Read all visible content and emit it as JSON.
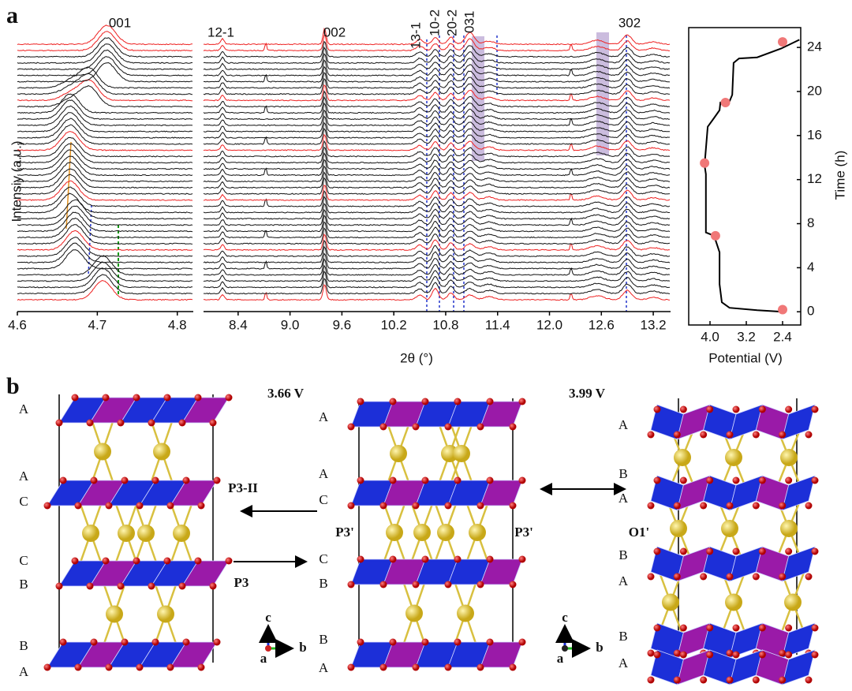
{
  "panel_labels": [
    "a",
    "b"
  ],
  "chart_data": [
    {
      "type": "waterfall",
      "ylabel": "Intensiy (a.u.)",
      "xlim": [
        4.6,
        4.82
      ],
      "xticks": [
        4.6,
        4.7,
        4.8
      ],
      "peak_labels": [
        "001"
      ]
    },
    {
      "type": "waterfall",
      "xlabel": "2θ (°)",
      "xlim": [
        8.0,
        13.4
      ],
      "xticks": [
        8.4,
        {
          "value": 9,
          "label": "9.0"
        },
        9.6,
        10.2,
        10.8,
        11.4,
        {
          "value": 12,
          "label": "12.0"
        },
        12.6,
        13.2
      ],
      "peak_labels": [
        "12-1",
        "002",
        "13-1",
        "10-2",
        "20-2",
        "031",
        "302"
      ]
    },
    {
      "type": "line",
      "xlabel": "Potential (V)",
      "ylabel": "Time (h)",
      "xlim": [
        4.47,
        2.0
      ],
      "ylim": [
        -1.2,
        25.8
      ],
      "xticks": [
        {
          "value": 4,
          "label": "4.0"
        },
        3.2,
        2.4
      ],
      "yticks": [
        0,
        4,
        8,
        12,
        16,
        20,
        24
      ],
      "x": [
        2.4,
        2.96,
        3.57,
        3.74,
        3.79,
        3.79,
        3.91,
        4.09,
        4.09,
        4.12,
        4.05,
        3.91,
        3.79,
        3.77,
        3.57,
        3.51,
        3.48,
        3.36,
        2.96,
        2.43,
        2.03
      ],
      "series": [
        {
          "color": "#000000",
          "values": [
            0,
            0.14,
            0.36,
            0.86,
            2.5,
            5.4,
            6.9,
            7.2,
            12.5,
            13.3,
            16.8,
            17.6,
            18.3,
            19.0,
            19.1,
            19.7,
            22.6,
            23.0,
            23.1,
            23.9,
            24.7
          ]
        }
      ],
      "points": {
        "color": "#f07878",
        "x": [
          2.4,
          3.88,
          4.12,
          3.66,
          2.4
        ],
        "values": [
          0.2,
          6.9,
          13.5,
          19.0,
          24.5
        ]
      }
    }
  ],
  "structures": {
    "voltages": [
      "3.66 V",
      "3.99 V"
    ],
    "phase_labels": [
      "P3-II",
      "P3",
      "P3'",
      "P3'",
      "O1'"
    ],
    "stacking": [
      [
        "A",
        "A",
        "C",
        "C",
        "B",
        "B",
        "A"
      ],
      [
        "A",
        "A",
        "C",
        "C",
        "B",
        "B",
        "A"
      ],
      [
        "A",
        "B",
        "A",
        "B",
        "A",
        "B",
        "A"
      ]
    ],
    "axes": [
      [
        "c",
        "a",
        "b"
      ],
      [
        "c",
        "a",
        "b"
      ]
    ]
  }
}
